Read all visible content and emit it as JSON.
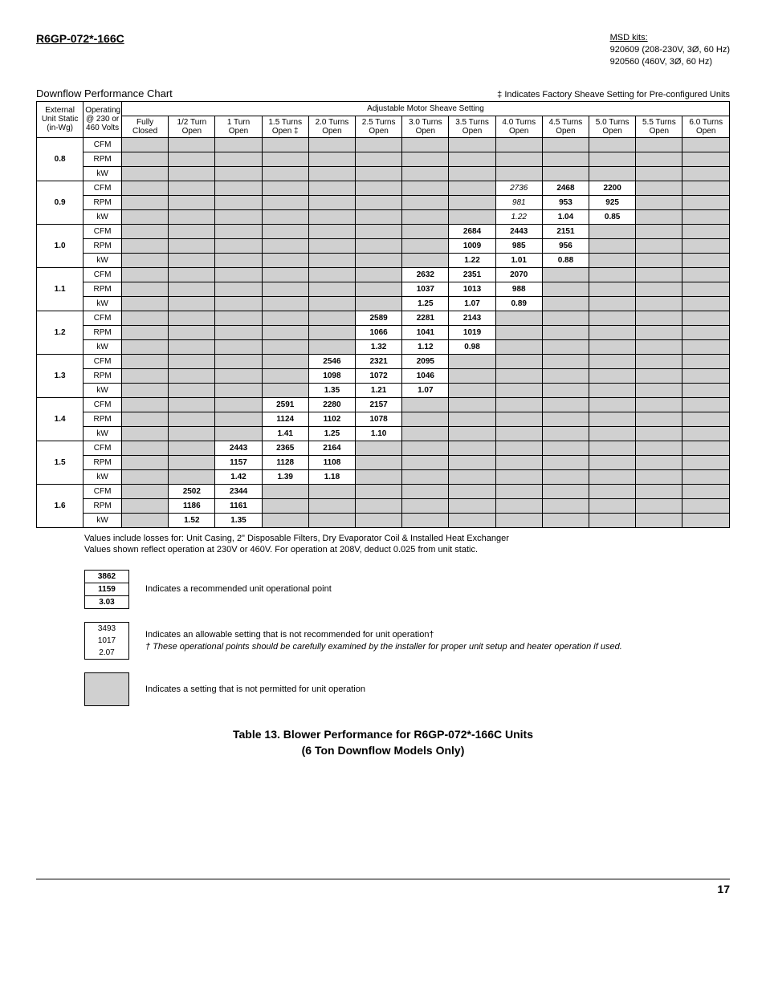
{
  "model": "R6GP-072*-166C",
  "msd": {
    "title": "MSD kits:",
    "line1": "920609 (208-230V, 3Ø, 60 Hz)",
    "line2": "920560 (460V, 3Ø, 60 Hz)"
  },
  "chart_title": "Downflow Performance Chart",
  "factory_note": "‡ Indicates Factory Sheave Setting for Pre-configured Units",
  "headers": {
    "external": "External Unit Static (in-Wg)",
    "operating": "Operating @ 230 or 460 Volts",
    "group": "Adjustable Motor Sheave Setting",
    "cols": [
      "Fully Closed",
      "1/2 Turn Open",
      "1 Turn Open",
      "1.5 Turns Open ‡",
      "2.0 Turns Open",
      "2.5 Turns Open",
      "3.0 Turns Open",
      "3.5 Turns Open",
      "4.0 Turns Open",
      "4.5 Turns Open",
      "5.0 Turns Open",
      "5.5 Turns Open",
      "6.0 Turns Open"
    ]
  },
  "metrics": [
    "CFM",
    "RPM",
    "kW"
  ],
  "rows": [
    {
      "static": "0.8",
      "data": {}
    },
    {
      "static": "0.9",
      "data": {
        "8": {
          "CFM": "2736",
          "RPM": "981",
          "kW": "1.22",
          "style": "ital"
        },
        "9": {
          "CFM": "2468",
          "RPM": "953",
          "kW": "1.04",
          "style": "bold"
        },
        "10": {
          "CFM": "2200",
          "RPM": "925",
          "kW": "0.85",
          "style": "bold"
        }
      }
    },
    {
      "static": "1.0",
      "data": {
        "7": {
          "CFM": "2684",
          "RPM": "1009",
          "kW": "1.22",
          "style": "bold"
        },
        "8": {
          "CFM": "2443",
          "RPM": "985",
          "kW": "1.01",
          "style": "bold"
        },
        "9": {
          "CFM": "2151",
          "RPM": "956",
          "kW": "0.88",
          "style": "bold"
        }
      }
    },
    {
      "static": "1.1",
      "data": {
        "6": {
          "CFM": "2632",
          "RPM": "1037",
          "kW": "1.25",
          "style": "bold"
        },
        "7": {
          "CFM": "2351",
          "RPM": "1013",
          "kW": "1.07",
          "style": "bold"
        },
        "8": {
          "CFM": "2070",
          "RPM": "988",
          "kW": "0.89",
          "style": "bold"
        }
      }
    },
    {
      "static": "1.2",
      "data": {
        "5": {
          "CFM": "2589",
          "RPM": "1066",
          "kW": "1.32",
          "style": "bold"
        },
        "6": {
          "CFM": "2281",
          "RPM": "1041",
          "kW": "1.12",
          "style": "bold"
        },
        "7": {
          "CFM": "2143",
          "RPM": "1019",
          "kW": "0.98",
          "style": "bold"
        }
      }
    },
    {
      "static": "1.3",
      "data": {
        "4": {
          "CFM": "2546",
          "RPM": "1098",
          "kW": "1.35",
          "style": "bold"
        },
        "5": {
          "CFM": "2321",
          "RPM": "1072",
          "kW": "1.21",
          "style": "bold"
        },
        "6": {
          "CFM": "2095",
          "RPM": "1046",
          "kW": "1.07",
          "style": "bold"
        }
      }
    },
    {
      "static": "1.4",
      "data": {
        "3": {
          "CFM": "2591",
          "RPM": "1124",
          "kW": "1.41",
          "style": "bold"
        },
        "4": {
          "CFM": "2280",
          "RPM": "1102",
          "kW": "1.25",
          "style": "bold"
        },
        "5": {
          "CFM": "2157",
          "RPM": "1078",
          "kW": "1.10",
          "style": "bold"
        }
      }
    },
    {
      "static": "1.5",
      "data": {
        "2": {
          "CFM": "2443",
          "RPM": "1157",
          "kW": "1.42",
          "style": "bold"
        },
        "3": {
          "CFM": "2365",
          "RPM": "1128",
          "kW": "1.39",
          "style": "bold"
        },
        "4": {
          "CFM": "2164",
          "RPM": "1108",
          "kW": "1.18",
          "style": "bold"
        }
      }
    },
    {
      "static": "1.6",
      "data": {
        "1": {
          "CFM": "2502",
          "RPM": "1186",
          "kW": "1.52",
          "style": "bold"
        },
        "2": {
          "CFM": "2344",
          "RPM": "1161",
          "kW": "1.35",
          "style": "bold"
        }
      }
    }
  ],
  "notes": {
    "line1": "Values include losses for: Unit Casing, 2\" Disposable Filters, Dry Evaporator Coil & Installed Heat Exchanger",
    "line2": "Values shown reflect operation at 230V or 460V. For operation at 208V, deduct 0.025 from unit static."
  },
  "legend": {
    "rec": {
      "cfm": "3862",
      "rpm": "1159",
      "kw": "3.03",
      "text": "Indicates a recommended unit operational point"
    },
    "allow": {
      "cfm": "3493",
      "rpm": "1017",
      "kw": "2.07",
      "text1": "Indicates an allowable setting that is not recommended for unit operation†",
      "text2": "† These operational points should be carefully examined by the installer for proper unit setup and heater operation if used."
    },
    "notperm": {
      "text": "Indicates a setting that is not permitted for unit operation"
    }
  },
  "caption": {
    "line1": "Table 13. Blower Performance for R6GP-072*-166C Units",
    "line2": "(6 Ton Downflow Models Only)"
  },
  "page": "17"
}
